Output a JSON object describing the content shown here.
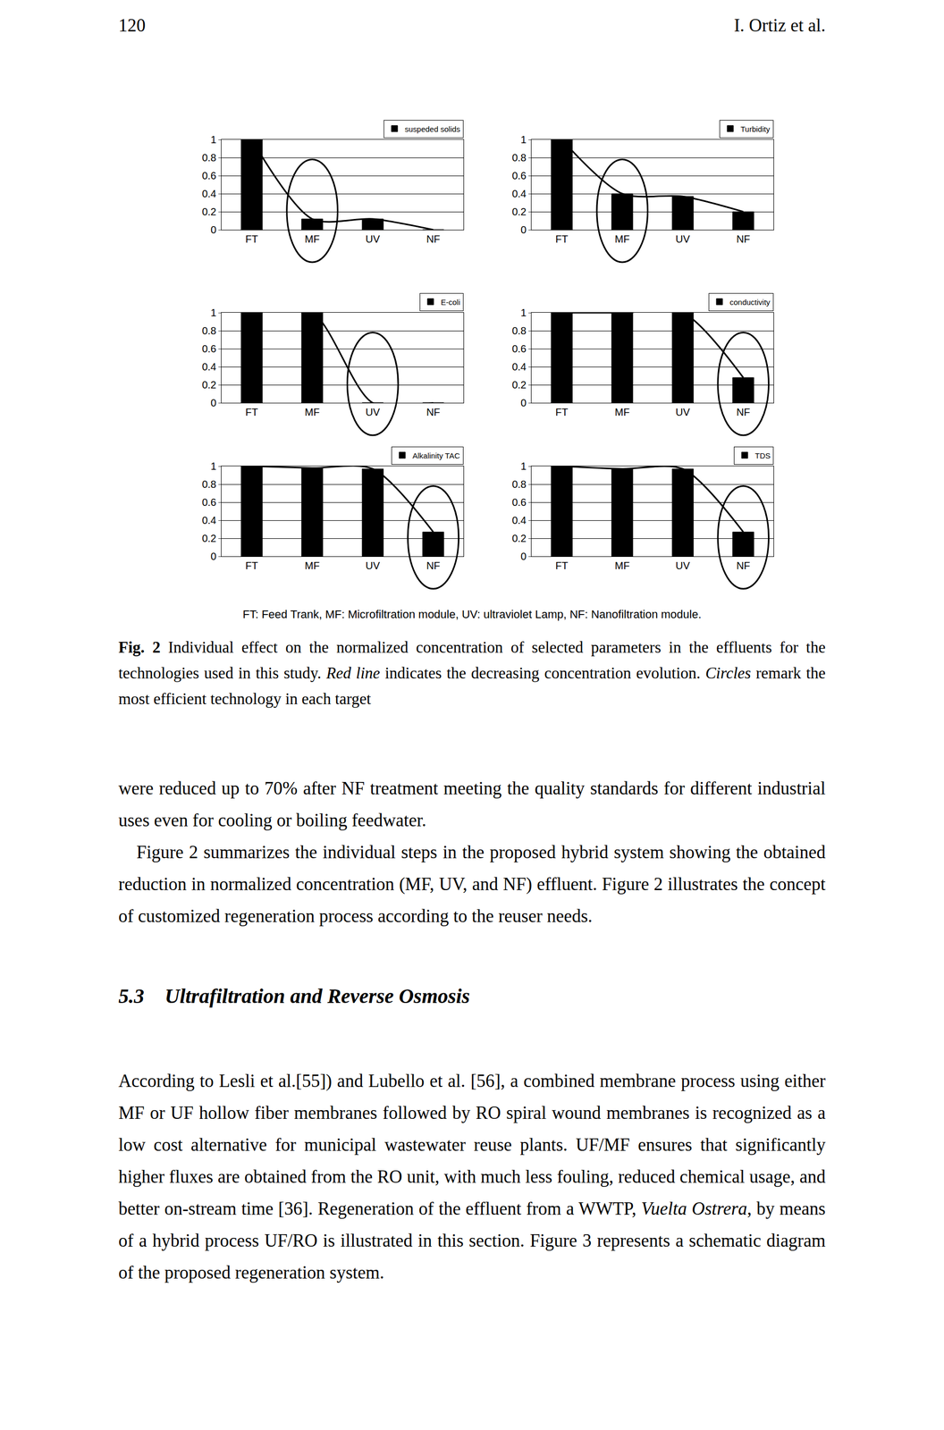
{
  "page": {
    "number": "120",
    "running_head": "I. Ortiz et al."
  },
  "chart_data": [
    {
      "type": "bar",
      "categories": [
        "FT",
        "MF",
        "UV",
        "NF"
      ],
      "series": [
        {
          "name": "suspeded solids",
          "color": "#000000",
          "values": [
            1,
            0.12,
            0.12,
            0
          ]
        }
      ],
      "ylim": [
        0,
        1
      ],
      "yticks": [
        0,
        0.2,
        0.4,
        0.6,
        0.8,
        1
      ],
      "grid": true,
      "legend": "top right",
      "line_style": "smooth",
      "highlight": "MF"
    },
    {
      "type": "bar",
      "categories": [
        "FT",
        "MF",
        "UV",
        "NF"
      ],
      "series": [
        {
          "name": "Turbidity",
          "color": "#000000",
          "values": [
            1,
            0.4,
            0.37,
            0.2
          ]
        }
      ],
      "ylim": [
        0,
        1
      ],
      "yticks": [
        0,
        0.2,
        0.4,
        0.6,
        0.8,
        1
      ],
      "grid": true,
      "legend": "top right",
      "line_style": "smooth",
      "highlight": "MF"
    },
    {
      "type": "bar",
      "categories": [
        "FT",
        "MF",
        "UV",
        "NF"
      ],
      "series": [
        {
          "name": "E-coli",
          "color": "#000000",
          "values": [
            1,
            1,
            0,
            0
          ]
        }
      ],
      "ylim": [
        0,
        1
      ],
      "yticks": [
        0,
        0.2,
        0.4,
        0.6,
        0.8,
        1
      ],
      "grid": true,
      "legend": "top right",
      "line_style": "smooth",
      "highlight": "UV"
    },
    {
      "type": "bar",
      "categories": [
        "FT",
        "MF",
        "UV",
        "NF"
      ],
      "series": [
        {
          "name": "conductivity",
          "color": "#000000",
          "values": [
            1,
            1,
            1,
            0.28
          ]
        }
      ],
      "ylim": [
        0,
        1
      ],
      "yticks": [
        0,
        0.2,
        0.4,
        0.6,
        0.8,
        1
      ],
      "grid": true,
      "legend": "top right",
      "line_style": "smooth",
      "highlight": "NF"
    },
    {
      "type": "bar",
      "categories": [
        "FT",
        "MF",
        "UV",
        "NF"
      ],
      "series": [
        {
          "name": "Alkalinity TAC",
          "color": "#000000",
          "values": [
            1,
            0.98,
            0.97,
            0.27
          ]
        }
      ],
      "ylim": [
        0,
        1
      ],
      "yticks": [
        0,
        0.2,
        0.4,
        0.6,
        0.8,
        1
      ],
      "grid": true,
      "legend": "top right",
      "line_style": "smooth",
      "highlight": "NF"
    },
    {
      "type": "bar",
      "categories": [
        "FT",
        "MF",
        "UV",
        "NF"
      ],
      "series": [
        {
          "name": "TDS",
          "color": "#000000",
          "values": [
            1,
            0.97,
            0.97,
            0.27
          ]
        }
      ],
      "ylim": [
        0,
        1
      ],
      "yticks": [
        0,
        0.2,
        0.4,
        0.6,
        0.8,
        1
      ],
      "grid": true,
      "legend": "top right",
      "line_style": "smooth",
      "highlight": "NF"
    }
  ],
  "abbreviations": "FT: Feed Trank, MF: Microfiltration module, UV: ultraviolet Lamp, NF: Nanofiltration module.",
  "caption": [
    {
      "text": "Fig. 2",
      "style": "bold"
    },
    {
      "text": " Individual effect on the normalized concentration of selected parameters in the effluents for the technologies used in this study. ",
      "style": "normal"
    },
    {
      "text": "Red line",
      "style": "italic"
    },
    {
      "text": " indicates the decreasing concentration evolution. ",
      "style": "normal"
    },
    {
      "text": "Circles",
      "style": "italic"
    },
    {
      "text": " remark the most efficient technology in each target",
      "style": "normal"
    }
  ],
  "paragraphs": [
    [
      {
        "text": "were reduced up to 70% after NF treatment meeting the quality standards for different industrial uses even for cooling or boiling feedwater.",
        "style": "normal"
      }
    ],
    [
      {
        "text": "Figure 2 summarizes the individual steps in the proposed hybrid system showing the obtained reduction in normalized concentration (MF, UV, and NF) effluent. Figure 2 illustrates the concept of customized regeneration process according to the reuser needs.",
        "style": "normal"
      }
    ]
  ],
  "section": {
    "number": "5.3",
    "title": "Ultrafiltration and Reverse Osmosis"
  },
  "section_paragraphs": [
    [
      {
        "text": "According to Lesli et al.[55]) and Lubello et al. [56], a combined membrane process using either MF or UF hollow fiber membranes followed by RO spiral wound membranes is recognized as a low cost alternative for municipal wastewater reuse plants. UF/MF ensures that significantly higher fluxes are obtained from the RO unit, with much less fouling, reduced chemical usage, and better on-stream time [36]. Regeneration of the effluent from a WWTP, ",
        "style": "normal"
      },
      {
        "text": "Vuelta Ostrera",
        "style": "italic"
      },
      {
        "text": ", by means of a hybrid process UF/RO is illustrated in this section. Figure 3 represents a schematic diagram of the proposed regeneration system.",
        "style": "normal"
      }
    ]
  ]
}
